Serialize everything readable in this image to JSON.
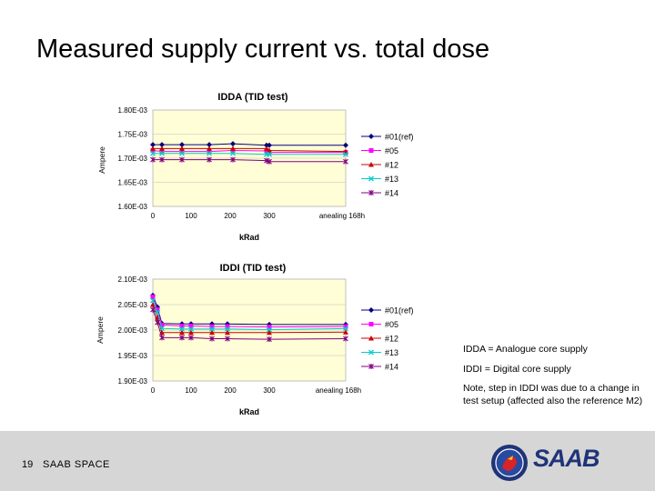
{
  "slide": {
    "title": "Measured supply current vs. total dose",
    "page_number": "19",
    "company": "SAAB SPACE",
    "logo_text": "SAAB"
  },
  "notes": {
    "idda": "IDDA = Analogue core supply",
    "iddi": "IDDI = Digital core supply",
    "step": "Note, step in IDDI was due to a change in test setup (affected also the reference M2)"
  },
  "colors": {
    "plot_bg": "#fffed6",
    "s01": "#000080",
    "s05": "#ff00ff",
    "s12": "#cc0000",
    "s13": "#00cccc",
    "s14": "#800080"
  },
  "chart_data": [
    {
      "type": "line",
      "title": "IDDA (TID test)",
      "xlabel": "kRad",
      "ylabel": "Ampere",
      "x": [
        "0",
        "",
        "",
        "100",
        "",
        "200",
        "300",
        "anealing 168h"
      ],
      "x_ticks": [
        "0",
        "100",
        "200",
        "300",
        "anealing 168h"
      ],
      "y_ticks": [
        "1.80E-03",
        "1.75E-03",
        "1.70E-03",
        "1.65E-03",
        "1.60E-03"
      ],
      "ylim": [
        0.0016,
        0.0018
      ],
      "grid": true,
      "legend": "right",
      "series": [
        {
          "name": "#01(ref)",
          "values": [
            0.001728,
            0.001728,
            0.001728,
            0.001728,
            0.00173,
            0.001727,
            0.001727,
            0.001727
          ]
        },
        {
          "name": "#05",
          "values": [
            0.001716,
            0.001714,
            0.001714,
            0.001714,
            0.001716,
            0.001715,
            0.001712,
            0.001712
          ]
        },
        {
          "name": "#12",
          "values": [
            0.00172,
            0.00172,
            0.00172,
            0.00172,
            0.00172,
            0.00172,
            0.001716,
            0.001714
          ]
        },
        {
          "name": "#13",
          "values": [
            0.00171,
            0.00171,
            0.00171,
            0.00171,
            0.00171,
            0.001708,
            0.001708,
            0.001708
          ]
        },
        {
          "name": "#14",
          "values": [
            0.001697,
            0.001697,
            0.001697,
            0.001697,
            0.001697,
            0.001695,
            0.001693,
            0.001693
          ]
        }
      ]
    },
    {
      "type": "line",
      "title": "IDDI (TID test)",
      "xlabel": "kRad",
      "ylabel": "Ampere",
      "x": [
        "",
        "",
        "0",
        "",
        "100",
        "",
        "200",
        "300",
        "anealing 168h"
      ],
      "x_ticks": [
        "0",
        "100",
        "200",
        "300",
        "anealing 168h"
      ],
      "y_ticks": [
        "2.10E-03",
        "2.05E-03",
        "2.00E-03",
        "1.95E-03",
        "1.90E-03"
      ],
      "ylim": [
        0.0019,
        0.0021
      ],
      "grid": true,
      "legend": "right",
      "series": [
        {
          "name": "#01(ref)",
          "values": [
            0.002068,
            0.002045,
            0.002013,
            0.002012,
            0.002012,
            0.002012,
            0.002012,
            0.002011,
            0.002011
          ]
        },
        {
          "name": "#05",
          "values": [
            0.002065,
            0.00204,
            0.00201,
            0.002008,
            0.002008,
            0.002007,
            0.002007,
            0.002006,
            0.002007
          ]
        },
        {
          "name": "#12",
          "values": [
            0.00205,
            0.002025,
            0.001995,
            0.001995,
            0.001995,
            0.001995,
            0.001995,
            0.001995,
            0.001996
          ]
        },
        {
          "name": "#13",
          "values": [
            0.002058,
            0.002035,
            0.002003,
            0.002002,
            0.002002,
            0.002002,
            0.002002,
            0.002001,
            0.002003
          ]
        },
        {
          "name": "#14",
          "values": [
            0.00204,
            0.002015,
            0.001985,
            0.001985,
            0.001985,
            0.001983,
            0.001983,
            0.001982,
            0.001983
          ]
        }
      ]
    }
  ]
}
